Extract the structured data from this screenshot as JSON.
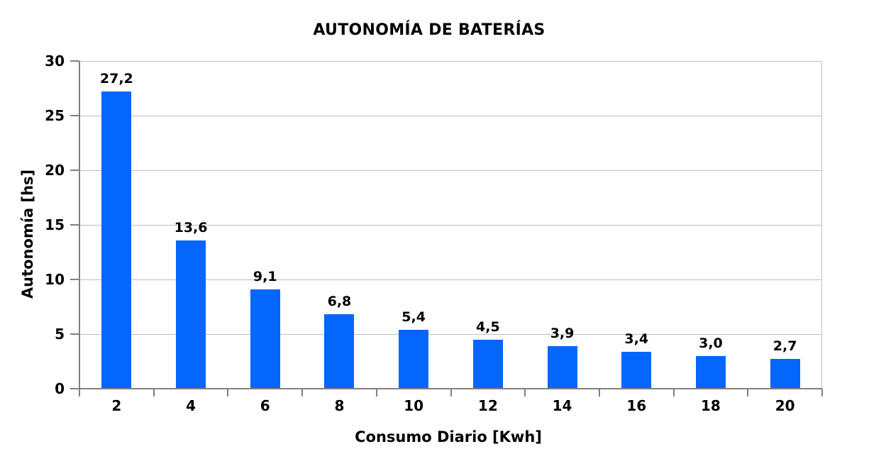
{
  "chart_data": {
    "type": "bar",
    "title": "AUTONOMÍA DE BATERÍAS",
    "xlabel": "Consumo Diario [Kwh]",
    "ylabel": "Autonomía [hs]",
    "categories": [
      "2",
      "4",
      "6",
      "8",
      "10",
      "12",
      "14",
      "16",
      "18",
      "20"
    ],
    "values": [
      27.2,
      13.6,
      9.1,
      6.8,
      5.4,
      4.5,
      3.9,
      3.4,
      3.0,
      2.7
    ],
    "value_labels": [
      "27,2",
      "13,6",
      "9,1",
      "6,8",
      "5,4",
      "4,5",
      "3,9",
      "3,4",
      "3,0",
      "2,7"
    ],
    "ylim": [
      0,
      30
    ],
    "ytick_step": 5,
    "ytick_labels": [
      "0",
      "5",
      "10",
      "15",
      "20",
      "25",
      "30"
    ],
    "grid": true,
    "legend_position": "none",
    "colors": {
      "bar": "#0566FB",
      "gridline": "#BFBFBF",
      "axis": "#808080",
      "text": "#000000",
      "background": "#FFFFFF"
    }
  }
}
